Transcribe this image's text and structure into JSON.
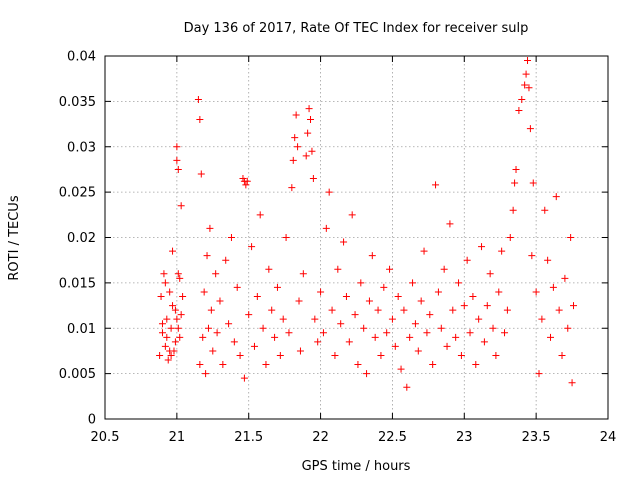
{
  "chart_data": {
    "type": "scatter",
    "title": "Day 136 of 2017, Rate Of TEC Index for receiver sulp",
    "xlabel": "GPS time / hours",
    "ylabel": "ROTI / TECUs",
    "xlim": [
      20.5,
      24
    ],
    "ylim": [
      0,
      0.04
    ],
    "x_ticks": [
      20.5,
      21,
      21.5,
      22,
      22.5,
      23,
      23.5,
      24
    ],
    "x_tick_labels": [
      "20.5",
      "21",
      "21.5",
      "22",
      "22.5",
      "23",
      "23.5",
      "24"
    ],
    "y_ticks": [
      0,
      0.005,
      0.01,
      0.015,
      0.02,
      0.025,
      0.03,
      0.035,
      0.04
    ],
    "y_tick_labels": [
      "0",
      "0.005",
      "0.01",
      "0.015",
      "0.02",
      "0.025",
      "0.03",
      "0.035",
      "0.04"
    ],
    "grid": true,
    "marker": "+",
    "color": "#ff0000",
    "series": [
      {
        "name": "ROTI",
        "points": [
          [
            20.88,
            0.007
          ],
          [
            20.89,
            0.0135
          ],
          [
            20.9,
            0.0095
          ],
          [
            20.91,
            0.016
          ],
          [
            20.92,
            0.008
          ],
          [
            20.93,
            0.011
          ],
          [
            20.94,
            0.0065
          ],
          [
            20.95,
            0.014
          ],
          [
            20.96,
            0.01
          ],
          [
            20.97,
            0.0185
          ],
          [
            20.98,
            0.0075
          ],
          [
            20.99,
            0.012
          ],
          [
            21.0,
            0.03
          ],
          [
            21.0,
            0.0285
          ],
          [
            21.01,
            0.0275
          ],
          [
            21.01,
            0.016
          ],
          [
            21.02,
            0.009
          ],
          [
            21.03,
            0.0235
          ],
          [
            21.03,
            0.0115
          ],
          [
            21.04,
            0.0135
          ],
          [
            20.9,
            0.0105
          ],
          [
            20.93,
            0.009
          ],
          [
            20.95,
            0.0075
          ],
          [
            20.97,
            0.0125
          ],
          [
            20.99,
            0.0085
          ],
          [
            21.01,
            0.01
          ],
          [
            21.02,
            0.0155
          ],
          [
            20.92,
            0.015
          ],
          [
            20.96,
            0.007
          ],
          [
            21.0,
            0.011
          ],
          [
            21.15,
            0.0352
          ],
          [
            21.16,
            0.033
          ],
          [
            21.17,
            0.027
          ],
          [
            21.16,
            0.006
          ],
          [
            21.18,
            0.009
          ],
          [
            21.19,
            0.014
          ],
          [
            21.2,
            0.005
          ],
          [
            21.21,
            0.018
          ],
          [
            21.22,
            0.01
          ],
          [
            21.23,
            0.021
          ],
          [
            21.24,
            0.012
          ],
          [
            21.25,
            0.0075
          ],
          [
            21.27,
            0.016
          ],
          [
            21.28,
            0.0095
          ],
          [
            21.3,
            0.013
          ],
          [
            21.32,
            0.006
          ],
          [
            21.34,
            0.0175
          ],
          [
            21.36,
            0.0105
          ],
          [
            21.38,
            0.02
          ],
          [
            21.4,
            0.0085
          ],
          [
            21.42,
            0.0145
          ],
          [
            21.44,
            0.007
          ],
          [
            21.46,
            0.0265
          ],
          [
            21.47,
            0.0262
          ],
          [
            21.48,
            0.0258
          ],
          [
            21.49,
            0.0262
          ],
          [
            21.47,
            0.0045
          ],
          [
            21.5,
            0.0115
          ],
          [
            21.52,
            0.019
          ],
          [
            21.54,
            0.008
          ],
          [
            21.56,
            0.0135
          ],
          [
            21.58,
            0.0225
          ],
          [
            21.6,
            0.01
          ],
          [
            21.62,
            0.006
          ],
          [
            21.64,
            0.0165
          ],
          [
            21.66,
            0.012
          ],
          [
            21.68,
            0.009
          ],
          [
            21.7,
            0.0145
          ],
          [
            21.72,
            0.007
          ],
          [
            21.74,
            0.011
          ],
          [
            21.76,
            0.02
          ],
          [
            21.78,
            0.0095
          ],
          [
            21.8,
            0.0255
          ],
          [
            21.81,
            0.0285
          ],
          [
            21.82,
            0.031
          ],
          [
            21.83,
            0.0335
          ],
          [
            21.84,
            0.03
          ],
          [
            21.85,
            0.013
          ],
          [
            21.86,
            0.0075
          ],
          [
            21.88,
            0.016
          ],
          [
            21.9,
            0.029
          ],
          [
            21.91,
            0.0315
          ],
          [
            21.92,
            0.0342
          ],
          [
            21.93,
            0.033
          ],
          [
            21.94,
            0.0295
          ],
          [
            21.95,
            0.0265
          ],
          [
            21.96,
            0.011
          ],
          [
            21.98,
            0.0085
          ],
          [
            22.0,
            0.014
          ],
          [
            22.02,
            0.0095
          ],
          [
            22.04,
            0.021
          ],
          [
            22.06,
            0.025
          ],
          [
            22.08,
            0.012
          ],
          [
            22.1,
            0.007
          ],
          [
            22.12,
            0.0165
          ],
          [
            22.14,
            0.0105
          ],
          [
            22.16,
            0.0195
          ],
          [
            22.18,
            0.0135
          ],
          [
            22.2,
            0.0085
          ],
          [
            22.22,
            0.0225
          ],
          [
            22.24,
            0.0115
          ],
          [
            22.26,
            0.006
          ],
          [
            22.28,
            0.015
          ],
          [
            22.3,
            0.01
          ],
          [
            22.32,
            0.005
          ],
          [
            22.34,
            0.013
          ],
          [
            22.36,
            0.018
          ],
          [
            22.38,
            0.009
          ],
          [
            22.4,
            0.012
          ],
          [
            22.42,
            0.007
          ],
          [
            22.44,
            0.0145
          ],
          [
            22.46,
            0.0095
          ],
          [
            22.48,
            0.0165
          ],
          [
            22.5,
            0.011
          ],
          [
            22.52,
            0.008
          ],
          [
            22.54,
            0.0135
          ],
          [
            22.56,
            0.0055
          ],
          [
            22.58,
            0.012
          ],
          [
            22.6,
            0.0035
          ],
          [
            22.62,
            0.009
          ],
          [
            22.64,
            0.015
          ],
          [
            22.66,
            0.0105
          ],
          [
            22.68,
            0.0075
          ],
          [
            22.7,
            0.013
          ],
          [
            22.72,
            0.0185
          ],
          [
            22.74,
            0.0095
          ],
          [
            22.76,
            0.0115
          ],
          [
            22.78,
            0.006
          ],
          [
            22.8,
            0.0258
          ],
          [
            22.82,
            0.014
          ],
          [
            22.84,
            0.01
          ],
          [
            22.86,
            0.0165
          ],
          [
            22.88,
            0.008
          ],
          [
            22.9,
            0.0215
          ],
          [
            22.92,
            0.012
          ],
          [
            22.94,
            0.009
          ],
          [
            22.96,
            0.015
          ],
          [
            22.98,
            0.007
          ],
          [
            23.0,
            0.0125
          ],
          [
            23.02,
            0.0175
          ],
          [
            23.04,
            0.0095
          ],
          [
            23.06,
            0.0135
          ],
          [
            23.08,
            0.006
          ],
          [
            23.1,
            0.011
          ],
          [
            23.12,
            0.019
          ],
          [
            23.14,
            0.0085
          ],
          [
            23.16,
            0.0125
          ],
          [
            23.18,
            0.016
          ],
          [
            23.2,
            0.01
          ],
          [
            23.22,
            0.007
          ],
          [
            23.24,
            0.014
          ],
          [
            23.26,
            0.0185
          ],
          [
            23.28,
            0.0095
          ],
          [
            23.3,
            0.012
          ],
          [
            23.32,
            0.02
          ],
          [
            23.34,
            0.023
          ],
          [
            23.35,
            0.026
          ],
          [
            23.36,
            0.0275
          ],
          [
            23.38,
            0.034
          ],
          [
            23.4,
            0.0352
          ],
          [
            23.42,
            0.0368
          ],
          [
            23.43,
            0.038
          ],
          [
            23.44,
            0.0395
          ],
          [
            23.45,
            0.0365
          ],
          [
            23.46,
            0.032
          ],
          [
            23.47,
            0.018
          ],
          [
            23.48,
            0.026
          ],
          [
            23.5,
            0.014
          ],
          [
            23.52,
            0.005
          ],
          [
            23.54,
            0.011
          ],
          [
            23.56,
            0.023
          ],
          [
            23.58,
            0.0175
          ],
          [
            23.6,
            0.009
          ],
          [
            23.62,
            0.0145
          ],
          [
            23.64,
            0.0245
          ],
          [
            23.66,
            0.012
          ],
          [
            23.68,
            0.007
          ],
          [
            23.7,
            0.0155
          ],
          [
            23.72,
            0.01
          ],
          [
            23.74,
            0.02
          ],
          [
            23.75,
            0.004
          ],
          [
            23.76,
            0.0125
          ]
        ]
      }
    ]
  }
}
